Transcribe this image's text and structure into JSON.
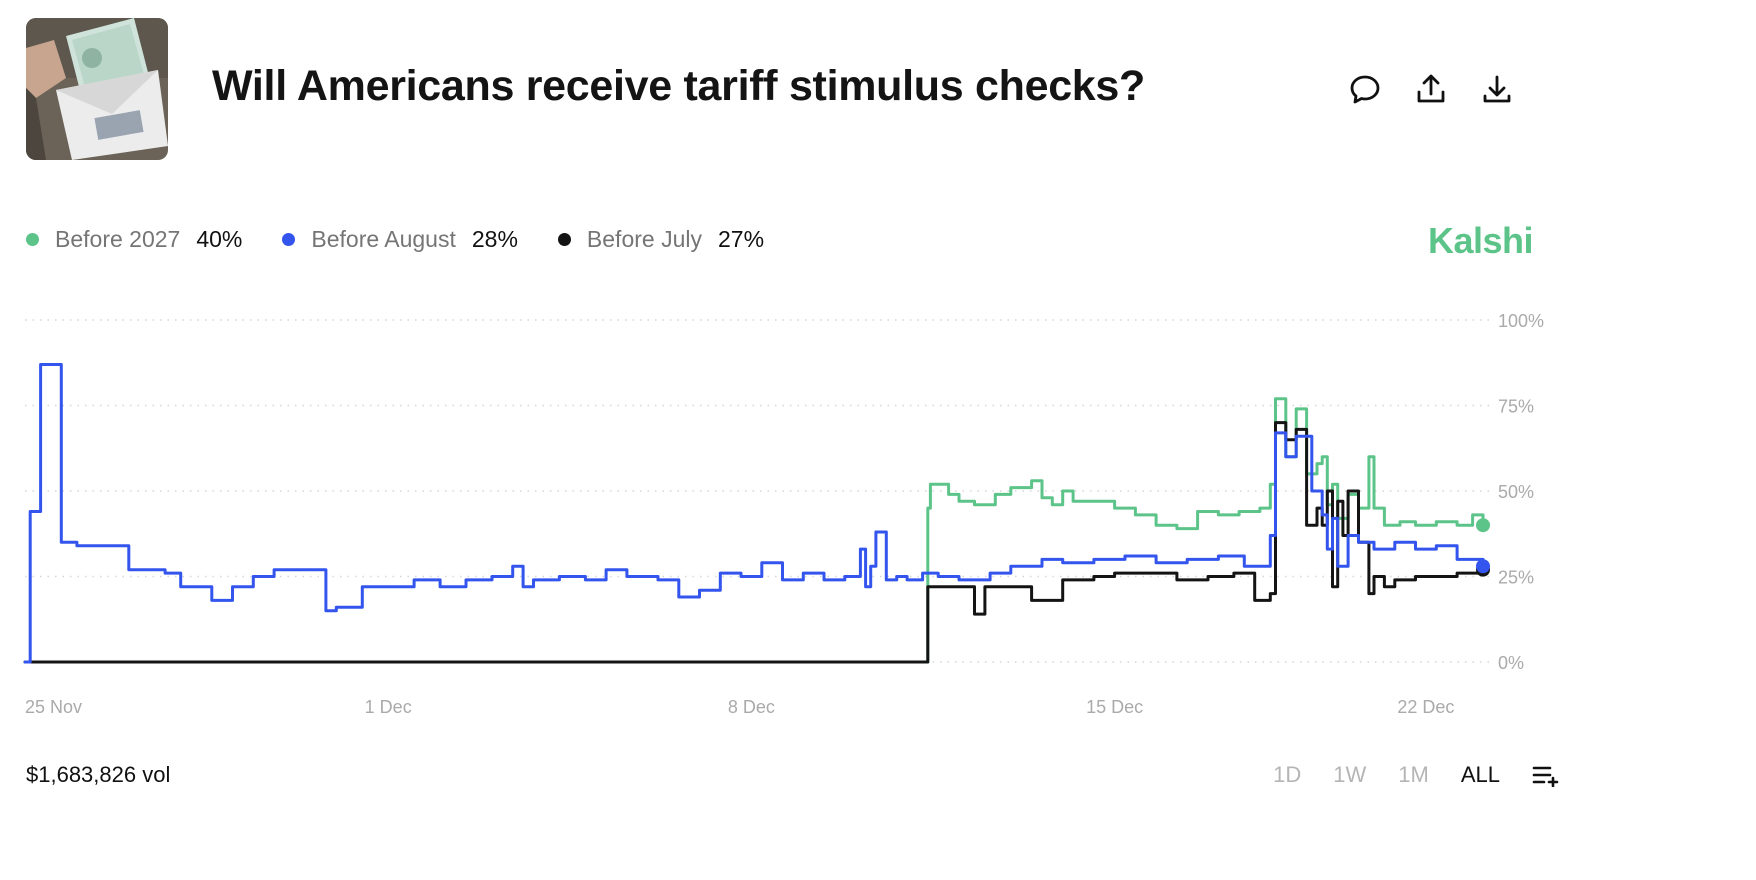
{
  "header": {
    "title": "Will Americans receive tariff stimulus checks?",
    "thumbnail_icon": "stimulus-check-photo"
  },
  "actions": {
    "comment_icon": "comment-icon",
    "share_icon": "share-icon",
    "download_icon": "download-icon"
  },
  "legend": [
    {
      "label": "Before 2027",
      "value": "40%",
      "color": "#5cc488"
    },
    {
      "label": "Before August",
      "value": "28%",
      "color": "#3355ee"
    },
    {
      "label": "Before July",
      "value": "27%",
      "color": "#141414"
    }
  ],
  "brand": {
    "name": "Kalshi",
    "color": "#5cc488"
  },
  "footer": {
    "volume": "$1,683,826 vol",
    "ranges": [
      "1D",
      "1W",
      "1M",
      "ALL"
    ],
    "active_range": "ALL",
    "menu_icon": "list-add-icon"
  },
  "chart_data": {
    "type": "line",
    "title": "Will Americans receive tariff stimulus checks?",
    "xlabel": "",
    "ylabel": "",
    "x_unit": "days since 25 Nov",
    "xlim": [
      0,
      28.1
    ],
    "ylim": [
      0,
      100
    ],
    "y_ticks": [
      0,
      25,
      50,
      75,
      100
    ],
    "y_tick_labels": [
      "0%",
      "25%",
      "50%",
      "75%",
      "100%"
    ],
    "x_ticks": [
      0,
      7,
      14,
      21,
      27
    ],
    "x_tick_labels": [
      "25 Nov",
      "1 Dec",
      "8 Dec",
      "15 Dec",
      "22 Dec"
    ],
    "grid": true,
    "series": [
      {
        "name": "Before 2027",
        "color": "#5cc488",
        "x": [
          0,
          17.35,
          17.4,
          17.45,
          17.8,
          18.0,
          18.3,
          18.7,
          19.0,
          19.4,
          19.6,
          19.8,
          20.0,
          20.2,
          20.6,
          21.0,
          21.4,
          21.8,
          22.2,
          22.6,
          23.0,
          23.4,
          23.8,
          24.0,
          24.1,
          24.3,
          24.5,
          24.7,
          24.9,
          25.0,
          25.1,
          25.2,
          25.3,
          25.5,
          25.7,
          25.9,
          26.0,
          26.2,
          26.5,
          26.8,
          27.2,
          27.6,
          27.9,
          28.1
        ],
        "y": [
          0,
          0,
          45,
          52,
          49,
          47,
          46,
          49,
          51,
          53,
          48,
          46,
          50,
          47,
          47,
          45,
          43,
          40,
          39,
          44,
          43,
          44,
          45,
          52,
          77,
          60,
          74,
          55,
          58,
          60,
          46,
          52,
          42,
          49,
          45,
          60,
          45,
          40,
          41,
          40,
          41,
          40,
          43,
          40
        ]
      },
      {
        "name": "Before August",
        "color": "#3355ee",
        "x": [
          0,
          0.1,
          0.2,
          0.3,
          0.6,
          0.7,
          1.0,
          2.0,
          2.6,
          2.7,
          3.0,
          3.2,
          3.6,
          4.0,
          4.4,
          4.8,
          5.0,
          5.8,
          6.0,
          6.5,
          7.0,
          7.5,
          8.0,
          8.5,
          9.0,
          9.4,
          9.6,
          9.8,
          10.3,
          10.8,
          11.2,
          11.6,
          12.2,
          12.6,
          13.0,
          13.4,
          13.8,
          14.2,
          14.6,
          15.0,
          15.4,
          15.8,
          16.1,
          16.2,
          16.3,
          16.4,
          16.6,
          16.8,
          17.0,
          17.3,
          17.6,
          18.0,
          18.6,
          19.0,
          19.6,
          20.0,
          20.6,
          21.2,
          21.8,
          22.4,
          23.0,
          23.5,
          24.0,
          24.1,
          24.3,
          24.5,
          24.8,
          25.0,
          25.1,
          25.2,
          25.3,
          25.5,
          25.7,
          26.0,
          26.4,
          26.8,
          27.2,
          27.6,
          28.1
        ],
        "y": [
          0,
          44,
          44,
          87,
          87,
          35,
          34,
          27,
          27,
          26,
          22,
          22,
          18,
          22,
          25,
          27,
          27,
          15,
          16,
          22,
          22,
          24,
          22,
          24,
          25,
          28,
          22,
          24,
          25,
          24,
          27,
          25,
          24,
          19,
          21,
          26,
          25,
          29,
          24,
          26,
          24,
          25,
          33,
          22,
          28,
          38,
          24,
          25,
          24,
          26,
          25,
          24,
          26,
          28,
          30,
          29,
          30,
          31,
          29,
          30,
          31,
          28,
          37,
          67,
          60,
          66,
          50,
          43,
          33,
          42,
          28,
          37,
          35,
          33,
          35,
          33,
          34,
          30,
          28
        ]
      },
      {
        "name": "Before July",
        "color": "#141414",
        "x": [
          0,
          17.35,
          17.4,
          18.2,
          18.3,
          18.5,
          19.0,
          19.4,
          20.0,
          20.6,
          21.0,
          21.6,
          22.2,
          22.8,
          23.3,
          23.7,
          24.0,
          24.1,
          24.3,
          24.5,
          24.7,
          24.9,
          25.0,
          25.1,
          25.2,
          25.3,
          25.4,
          25.5,
          25.7,
          25.9,
          26.0,
          26.2,
          26.4,
          26.8,
          27.2,
          27.6,
          28.1
        ],
        "y": [
          0,
          0,
          22,
          22,
          14,
          22,
          22,
          18,
          24,
          25,
          26,
          26,
          24,
          25,
          26,
          18,
          20,
          70,
          65,
          68,
          40,
          45,
          40,
          50,
          22,
          47,
          37,
          50,
          35,
          20,
          25,
          22,
          24,
          25,
          25,
          26,
          27
        ]
      }
    ]
  }
}
